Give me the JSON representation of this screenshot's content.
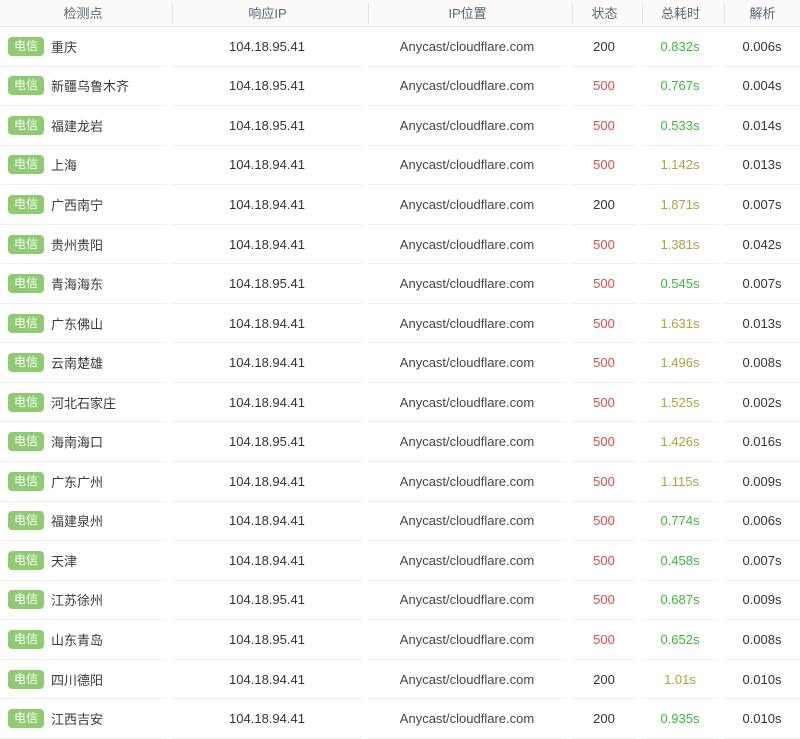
{
  "header": {
    "columns": [
      {
        "label": "检测点"
      },
      {
        "label": "响应IP"
      },
      {
        "label": "IP位置"
      },
      {
        "label": "状态"
      },
      {
        "label": "总耗时"
      },
      {
        "label": "解析"
      }
    ]
  },
  "colors": {
    "badge_green": "#8ecb71",
    "status_error_red": "#e04b4b",
    "time_fast_green": "#3cb93c",
    "time_slow_olive": "#b0a13c"
  },
  "rows": [
    {
      "isp": "电信",
      "node": "重庆",
      "ip": "104.18.95.41",
      "ip_location": "Anycast/cloudflare.com",
      "status": "200",
      "status_type": "ok",
      "total": "0.832s",
      "total_type": "fast",
      "resolve": "0.006s"
    },
    {
      "isp": "电信",
      "node": "新疆乌鲁木齐",
      "ip": "104.18.95.41",
      "ip_location": "Anycast/cloudflare.com",
      "status": "500",
      "status_type": "error",
      "total": "0.767s",
      "total_type": "fast",
      "resolve": "0.004s"
    },
    {
      "isp": "电信",
      "node": "福建龙岩",
      "ip": "104.18.95.41",
      "ip_location": "Anycast/cloudflare.com",
      "status": "500",
      "status_type": "error",
      "total": "0.533s",
      "total_type": "fast",
      "resolve": "0.014s"
    },
    {
      "isp": "电信",
      "node": "上海",
      "ip": "104.18.94.41",
      "ip_location": "Anycast/cloudflare.com",
      "status": "500",
      "status_type": "error",
      "total": "1.142s",
      "total_type": "slow",
      "resolve": "0.013s"
    },
    {
      "isp": "电信",
      "node": "广西南宁",
      "ip": "104.18.94.41",
      "ip_location": "Anycast/cloudflare.com",
      "status": "200",
      "status_type": "ok",
      "total": "1.871s",
      "total_type": "slow",
      "resolve": "0.007s"
    },
    {
      "isp": "电信",
      "node": "贵州贵阳",
      "ip": "104.18.94.41",
      "ip_location": "Anycast/cloudflare.com",
      "status": "500",
      "status_type": "error",
      "total": "1.381s",
      "total_type": "slow",
      "resolve": "0.042s"
    },
    {
      "isp": "电信",
      "node": "青海海东",
      "ip": "104.18.95.41",
      "ip_location": "Anycast/cloudflare.com",
      "status": "500",
      "status_type": "error",
      "total": "0.545s",
      "total_type": "fast",
      "resolve": "0.007s"
    },
    {
      "isp": "电信",
      "node": "广东佛山",
      "ip": "104.18.94.41",
      "ip_location": "Anycast/cloudflare.com",
      "status": "500",
      "status_type": "error",
      "total": "1.631s",
      "total_type": "slow",
      "resolve": "0.013s"
    },
    {
      "isp": "电信",
      "node": "云南楚雄",
      "ip": "104.18.94.41",
      "ip_location": "Anycast/cloudflare.com",
      "status": "500",
      "status_type": "error",
      "total": "1.496s",
      "total_type": "slow",
      "resolve": "0.008s"
    },
    {
      "isp": "电信",
      "node": "河北石家庄",
      "ip": "104.18.94.41",
      "ip_location": "Anycast/cloudflare.com",
      "status": "500",
      "status_type": "error",
      "total": "1.525s",
      "total_type": "slow",
      "resolve": "0.002s"
    },
    {
      "isp": "电信",
      "node": "海南海口",
      "ip": "104.18.95.41",
      "ip_location": "Anycast/cloudflare.com",
      "status": "500",
      "status_type": "error",
      "total": "1.426s",
      "total_type": "slow",
      "resolve": "0.016s"
    },
    {
      "isp": "电信",
      "node": "广东广州",
      "ip": "104.18.94.41",
      "ip_location": "Anycast/cloudflare.com",
      "status": "500",
      "status_type": "error",
      "total": "1.115s",
      "total_type": "slow",
      "resolve": "0.009s"
    },
    {
      "isp": "电信",
      "node": "福建泉州",
      "ip": "104.18.94.41",
      "ip_location": "Anycast/cloudflare.com",
      "status": "500",
      "status_type": "error",
      "total": "0.774s",
      "total_type": "fast",
      "resolve": "0.006s"
    },
    {
      "isp": "电信",
      "node": "天津",
      "ip": "104.18.94.41",
      "ip_location": "Anycast/cloudflare.com",
      "status": "500",
      "status_type": "error",
      "total": "0.458s",
      "total_type": "fast",
      "resolve": "0.007s"
    },
    {
      "isp": "电信",
      "node": "江苏徐州",
      "ip": "104.18.95.41",
      "ip_location": "Anycast/cloudflare.com",
      "status": "500",
      "status_type": "error",
      "total": "0.687s",
      "total_type": "fast",
      "resolve": "0.009s"
    },
    {
      "isp": "电信",
      "node": "山东青岛",
      "ip": "104.18.95.41",
      "ip_location": "Anycast/cloudflare.com",
      "status": "500",
      "status_type": "error",
      "total": "0.652s",
      "total_type": "fast",
      "resolve": "0.008s"
    },
    {
      "isp": "电信",
      "node": "四川德阳",
      "ip": "104.18.94.41",
      "ip_location": "Anycast/cloudflare.com",
      "status": "200",
      "status_type": "ok",
      "total": "1.01s",
      "total_type": "slow",
      "resolve": "0.010s"
    },
    {
      "isp": "电信",
      "node": "江西吉安",
      "ip": "104.18.94.41",
      "ip_location": "Anycast/cloudflare.com",
      "status": "200",
      "status_type": "ok",
      "total": "0.935s",
      "total_type": "fast",
      "resolve": "0.010s"
    }
  ]
}
